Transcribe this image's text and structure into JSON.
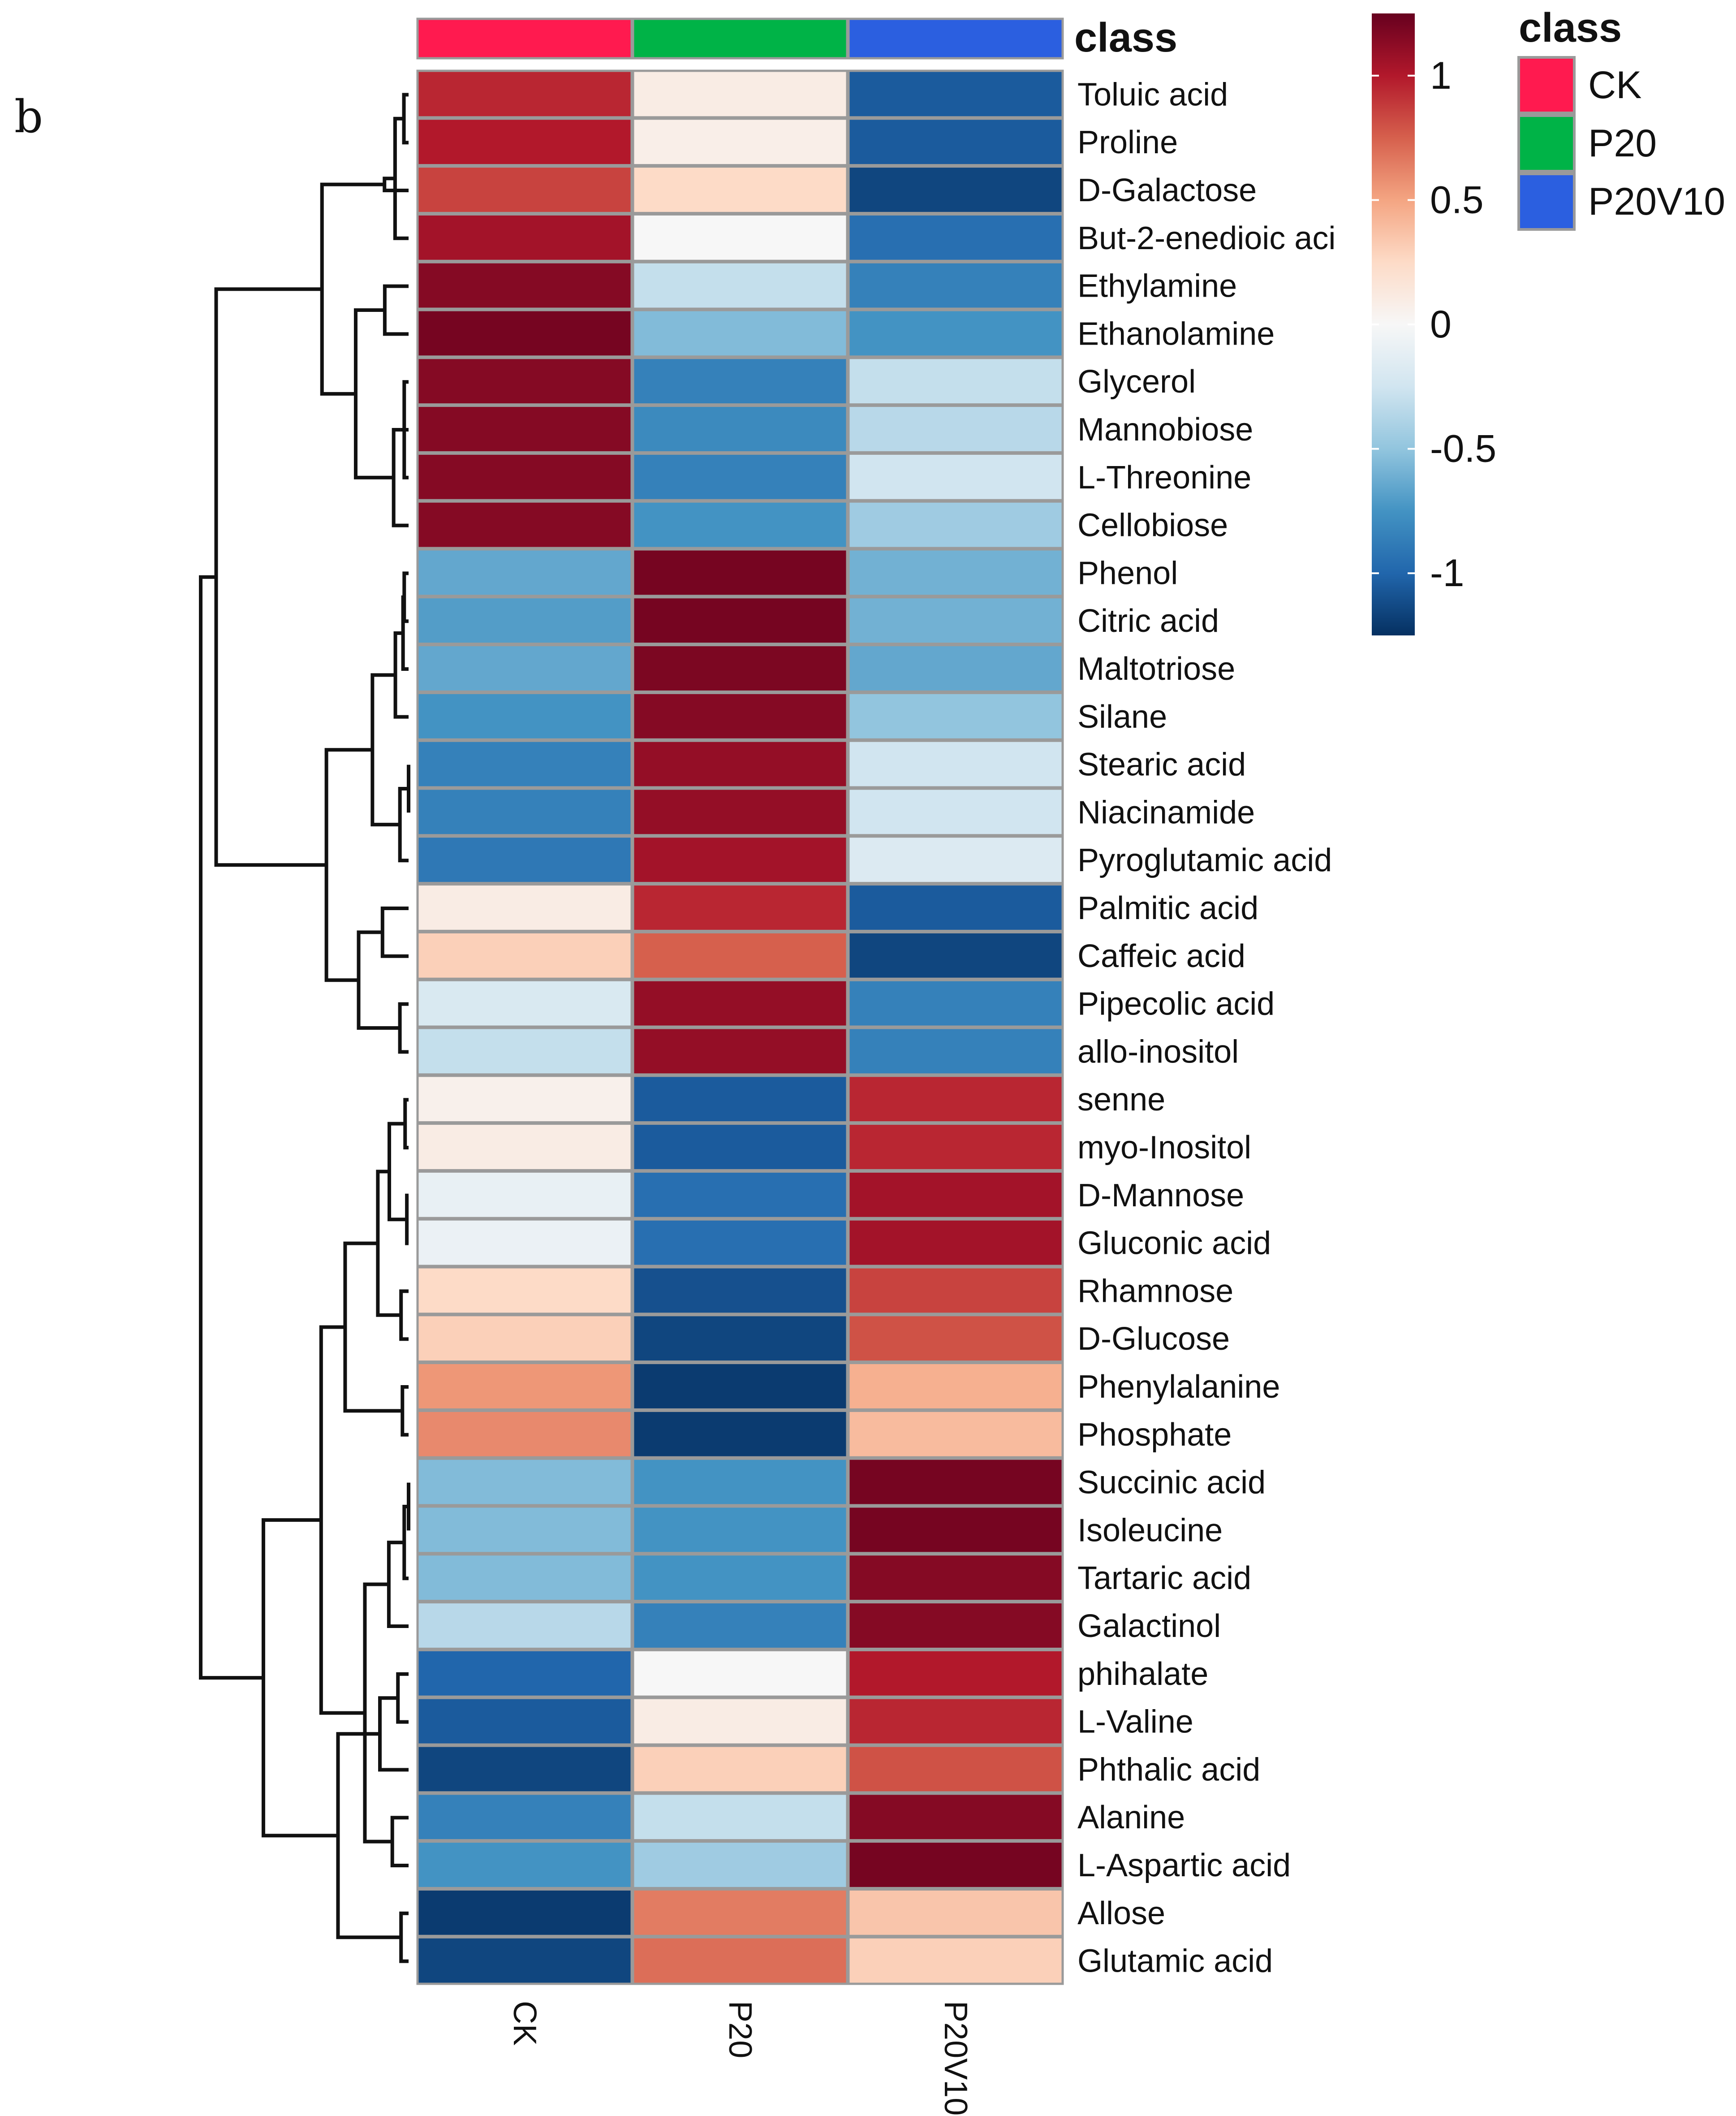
{
  "panel_label": "b",
  "chart_data": {
    "type": "heatmap",
    "title": "",
    "columns": [
      "CK",
      "P20",
      "P20V10"
    ],
    "rows": [
      "Toluic acid",
      "Proline",
      "D-Galactose",
      "But-2-enedioic aci",
      "Ethylamine",
      "Ethanolamine",
      "Glycerol",
      "Mannobiose",
      "L-Threonine",
      "Cellobiose",
      "Phenol",
      "Citric acid",
      "Maltotriose",
      "Silane",
      "Stearic acid",
      "Niacinamide",
      "Pyroglutamic acid",
      "Palmitic acid",
      "Caffeic acid",
      "Pipecolic acid",
      "allo-inositol",
      "senne",
      "myo-Inositol",
      "D-Mannose",
      "Gluconic acid",
      "Rhamnose",
      "D-Glucose",
      "Phenylalanine",
      "Phosphate",
      "Succinic acid",
      "Isoleucine",
      "Tartaric acid",
      "Galactinol",
      "phihalate",
      "L-Valine",
      "Phthalic acid",
      "Alanine",
      "L-Aspartic acid",
      "Allose",
      "Glutamic acid"
    ],
    "values": [
      [
        0.95,
        0.1,
        -1.05
      ],
      [
        1.0,
        0.08,
        -1.05
      ],
      [
        0.85,
        0.25,
        -1.15
      ],
      [
        1.05,
        0.0,
        -0.95
      ],
      [
        1.15,
        -0.3,
        -0.85
      ],
      [
        1.2,
        -0.55,
        -0.75
      ],
      [
        1.15,
        -0.85,
        -0.3
      ],
      [
        1.15,
        -0.8,
        -0.35
      ],
      [
        1.15,
        -0.85,
        -0.25
      ],
      [
        1.15,
        -0.75,
        -0.45
      ],
      [
        -0.65,
        1.2,
        -0.6
      ],
      [
        -0.7,
        1.2,
        -0.6
      ],
      [
        -0.65,
        1.18,
        -0.65
      ],
      [
        -0.75,
        1.15,
        -0.5
      ],
      [
        -0.85,
        1.1,
        -0.25
      ],
      [
        -0.85,
        1.1,
        -0.25
      ],
      [
        -0.9,
        1.05,
        -0.18
      ],
      [
        0.1,
        0.95,
        -1.05
      ],
      [
        0.3,
        0.75,
        -1.15
      ],
      [
        -0.2,
        1.1,
        -0.85
      ],
      [
        -0.3,
        1.1,
        -0.85
      ],
      [
        0.06,
        -1.05,
        0.95
      ],
      [
        0.1,
        -1.05,
        0.95
      ],
      [
        -0.1,
        -0.95,
        1.05
      ],
      [
        -0.08,
        -0.95,
        1.05
      ],
      [
        0.25,
        -1.1,
        0.85
      ],
      [
        0.3,
        -1.15,
        0.8
      ],
      [
        0.55,
        -1.2,
        0.45
      ],
      [
        0.6,
        -1.2,
        0.4
      ],
      [
        -0.55,
        -0.75,
        1.2
      ],
      [
        -0.55,
        -0.75,
        1.2
      ],
      [
        -0.55,
        -0.75,
        1.15
      ],
      [
        -0.35,
        -0.85,
        1.15
      ],
      [
        -1.0,
        0.0,
        1.0
      ],
      [
        -1.05,
        0.1,
        0.95
      ],
      [
        -1.15,
        0.3,
        0.8
      ],
      [
        -0.85,
        -0.3,
        1.15
      ],
      [
        -0.75,
        -0.45,
        1.2
      ],
      [
        -1.2,
        0.65,
        0.35
      ],
      [
        -1.15,
        0.7,
        0.3
      ]
    ],
    "color_scale": {
      "range": [
        -1.25,
        1.25
      ],
      "ticks": [
        1,
        0.5,
        0,
        -0.5,
        -1
      ],
      "tick_labels": [
        "1",
        "0.5",
        "0",
        "-0.5",
        "-1"
      ],
      "stops": [
        "#053061",
        "#2166ac",
        "#4393c3",
        "#92c5de",
        "#d1e5f0",
        "#f7f7f7",
        "#fddbc7",
        "#f4a582",
        "#d6604d",
        "#b2182b",
        "#67001f"
      ]
    },
    "column_annotation": {
      "title": "class",
      "legend_title": "class",
      "groups": [
        {
          "name": "CK",
          "color": "#ff1a4f"
        },
        {
          "name": "P20",
          "color": "#00b347"
        },
        {
          "name": "P20V10",
          "color": "#2b5fe0"
        }
      ]
    },
    "row_dendrogram": "left"
  }
}
